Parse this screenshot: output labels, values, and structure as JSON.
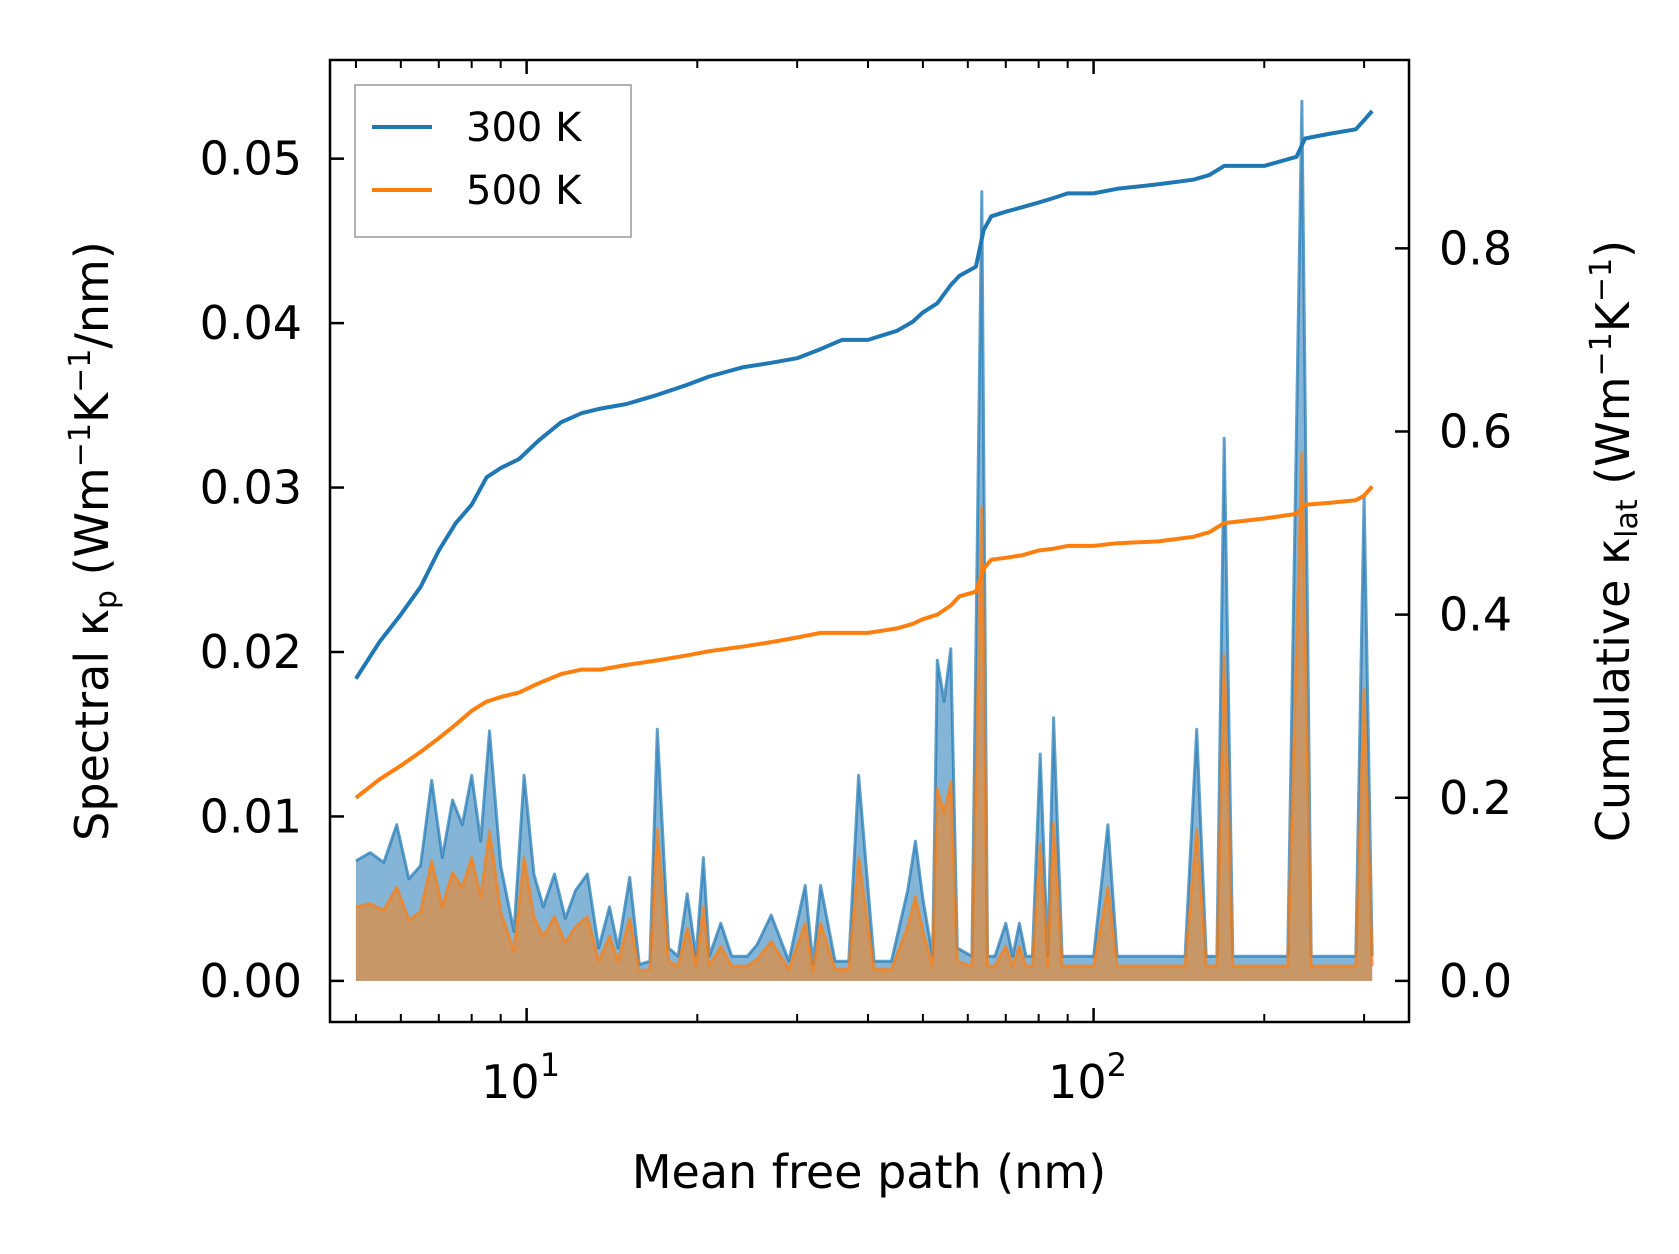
{
  "chart_data": {
    "type": "line",
    "x_scale": "log",
    "xlim": [
      4.5,
      360
    ],
    "ylim_left": [
      -0.0025,
      0.056
    ],
    "ylim_right": [
      -0.0449,
      1.0057
    ],
    "xlabel": "Mean free path (nm)",
    "ylabel_left": "Spectral κp (Wm−1K−1/nm)",
    "ylabel_right": "Cumulative κlat (Wm−1K−1)",
    "ylabel_left_parts": [
      "Spectral κ",
      "p",
      " (Wm",
      "−1",
      "K",
      "−1",
      "/nm)"
    ],
    "ylabel_right_parts": [
      "Cumulative κ",
      "lat",
      " (Wm",
      "−1",
      "K",
      "−1",
      ")"
    ],
    "x_ticks": [
      {
        "value": 10,
        "base": "10",
        "exp": "1"
      },
      {
        "value": 100,
        "base": "10",
        "exp": "2"
      }
    ],
    "y_ticks_left": [
      {
        "value": 0.0,
        "label": "0.00"
      },
      {
        "value": 0.01,
        "label": "0.01"
      },
      {
        "value": 0.02,
        "label": "0.02"
      },
      {
        "value": 0.03,
        "label": "0.03"
      },
      {
        "value": 0.04,
        "label": "0.04"
      },
      {
        "value": 0.05,
        "label": "0.05"
      }
    ],
    "y_ticks_right": [
      {
        "value": 0.0,
        "label": "0.0"
      },
      {
        "value": 0.2,
        "label": "0.2"
      },
      {
        "value": 0.4,
        "label": "0.4"
      },
      {
        "value": 0.6,
        "label": "0.6"
      },
      {
        "value": 0.8,
        "label": "0.8"
      }
    ],
    "legend": {
      "position": "upper-left"
    },
    "series": [
      {
        "name": "300 K",
        "color": "#1f77b4",
        "cumulative": [
          [
            5,
            0.33
          ],
          [
            5.5,
            0.37
          ],
          [
            6.0,
            0.4
          ],
          [
            6.5,
            0.43
          ],
          [
            7.0,
            0.47
          ],
          [
            7.5,
            0.5
          ],
          [
            8,
            0.52
          ],
          [
            8.5,
            0.55
          ],
          [
            9,
            0.56
          ],
          [
            9.7,
            0.57
          ],
          [
            10.5,
            0.59
          ],
          [
            11.5,
            0.61
          ],
          [
            12.5,
            0.62
          ],
          [
            13.5,
            0.625
          ],
          [
            15,
            0.63
          ],
          [
            17,
            0.64
          ],
          [
            19,
            0.65
          ],
          [
            21,
            0.66
          ],
          [
            24,
            0.67
          ],
          [
            27,
            0.675
          ],
          [
            30,
            0.68
          ],
          [
            33,
            0.69
          ],
          [
            36,
            0.7
          ],
          [
            40,
            0.7
          ],
          [
            45,
            0.71
          ],
          [
            48,
            0.72
          ],
          [
            50,
            0.73
          ],
          [
            53,
            0.74
          ],
          [
            56,
            0.76
          ],
          [
            58,
            0.77
          ],
          [
            62,
            0.78
          ],
          [
            64,
            0.82
          ],
          [
            66,
            0.835
          ],
          [
            70,
            0.84
          ],
          [
            75,
            0.845
          ],
          [
            80,
            0.85
          ],
          [
            85,
            0.855
          ],
          [
            90,
            0.86
          ],
          [
            100,
            0.86
          ],
          [
            110,
            0.865
          ],
          [
            130,
            0.87
          ],
          [
            150,
            0.875
          ],
          [
            160,
            0.88
          ],
          [
            170,
            0.89
          ],
          [
            200,
            0.89
          ],
          [
            228,
            0.9
          ],
          [
            236,
            0.92
          ],
          [
            260,
            0.925
          ],
          [
            290,
            0.93
          ],
          [
            300,
            0.94
          ],
          [
            310,
            0.95
          ]
        ],
        "spectral": [
          [
            5,
            0.0073
          ],
          [
            5.3,
            0.0078
          ],
          [
            5.6,
            0.0072
          ],
          [
            5.9,
            0.0095
          ],
          [
            6.2,
            0.0062
          ],
          [
            6.5,
            0.007
          ],
          [
            6.8,
            0.0122
          ],
          [
            7.1,
            0.0075
          ],
          [
            7.4,
            0.011
          ],
          [
            7.7,
            0.0095
          ],
          [
            8,
            0.0125
          ],
          [
            8.3,
            0.0085
          ],
          [
            8.6,
            0.0152
          ],
          [
            9.0,
            0.007
          ],
          [
            9.5,
            0.003
          ],
          [
            9.9,
            0.0125
          ],
          [
            10.3,
            0.0065
          ],
          [
            10.7,
            0.0045
          ],
          [
            11.2,
            0.0065
          ],
          [
            11.7,
            0.0038
          ],
          [
            12.2,
            0.0055
          ],
          [
            12.8,
            0.0065
          ],
          [
            13.4,
            0.002
          ],
          [
            14,
            0.0045
          ],
          [
            14.5,
            0.002
          ],
          [
            15.2,
            0.0063
          ],
          [
            15.8,
            0.001
          ],
          [
            16.5,
            0.0012
          ],
          [
            17,
            0.0153
          ],
          [
            17.8,
            0.002
          ],
          [
            18.5,
            0.0015
          ],
          [
            19.2,
            0.0053
          ],
          [
            19.9,
            0.0015
          ],
          [
            20.5,
            0.0075
          ],
          [
            21,
            0.0015
          ],
          [
            22,
            0.0035
          ],
          [
            23,
            0.0015
          ],
          [
            24.5,
            0.0015
          ],
          [
            25.5,
            0.0022
          ],
          [
            27,
            0.004
          ],
          [
            29,
            0.0012
          ],
          [
            31,
            0.0058
          ],
          [
            32,
            0.001
          ],
          [
            33,
            0.0058
          ],
          [
            35,
            0.0012
          ],
          [
            37,
            0.0012
          ],
          [
            38.5,
            0.0125
          ],
          [
            41,
            0.0012
          ],
          [
            44,
            0.0012
          ],
          [
            47,
            0.0055
          ],
          [
            48.5,
            0.0085
          ],
          [
            50,
            0.005
          ],
          [
            52,
            0.0015
          ],
          [
            53,
            0.0195
          ],
          [
            54.5,
            0.017
          ],
          [
            56,
            0.0202
          ],
          [
            57.5,
            0.002
          ],
          [
            61,
            0.0015
          ],
          [
            63.5,
            0.048
          ],
          [
            65,
            0.0015
          ],
          [
            67,
            0.0015
          ],
          [
            70,
            0.0035
          ],
          [
            72,
            0.0015
          ],
          [
            74,
            0.0035
          ],
          [
            76,
            0.0015
          ],
          [
            78,
            0.0015
          ],
          [
            80.5,
            0.0138
          ],
          [
            83,
            0.0015
          ],
          [
            85,
            0.016
          ],
          [
            88,
            0.0015
          ],
          [
            100,
            0.0015
          ],
          [
            106,
            0.0095
          ],
          [
            110,
            0.0015
          ],
          [
            145,
            0.0015
          ],
          [
            152,
            0.0153
          ],
          [
            158,
            0.0015
          ],
          [
            165,
            0.0015
          ],
          [
            170,
            0.033
          ],
          [
            176,
            0.0015
          ],
          [
            220,
            0.0015
          ],
          [
            233,
            0.0535
          ],
          [
            242,
            0.0015
          ],
          [
            290,
            0.0015
          ],
          [
            300,
            0.0295
          ],
          [
            310,
            0.0015
          ]
        ]
      },
      {
        "name": "500 K",
        "color": "#ff7f0e",
        "cumulative": [
          [
            5,
            0.2
          ],
          [
            5.5,
            0.22
          ],
          [
            6.0,
            0.235
          ],
          [
            6.5,
            0.25
          ],
          [
            7.0,
            0.265
          ],
          [
            7.5,
            0.28
          ],
          [
            8,
            0.295
          ],
          [
            8.5,
            0.305
          ],
          [
            9,
            0.31
          ],
          [
            9.7,
            0.315
          ],
          [
            10.5,
            0.325
          ],
          [
            11.5,
            0.335
          ],
          [
            12.5,
            0.34
          ],
          [
            13.5,
            0.34
          ],
          [
            15,
            0.345
          ],
          [
            17,
            0.35
          ],
          [
            19,
            0.355
          ],
          [
            21,
            0.36
          ],
          [
            24,
            0.365
          ],
          [
            27,
            0.37
          ],
          [
            30,
            0.375
          ],
          [
            33,
            0.38
          ],
          [
            36,
            0.38
          ],
          [
            40,
            0.38
          ],
          [
            45,
            0.385
          ],
          [
            48,
            0.39
          ],
          [
            50,
            0.395
          ],
          [
            53,
            0.4
          ],
          [
            56,
            0.41
          ],
          [
            58,
            0.42
          ],
          [
            62,
            0.425
          ],
          [
            64,
            0.45
          ],
          [
            66,
            0.46
          ],
          [
            70,
            0.462
          ],
          [
            75,
            0.465
          ],
          [
            80,
            0.47
          ],
          [
            85,
            0.472
          ],
          [
            90,
            0.475
          ],
          [
            100,
            0.475
          ],
          [
            110,
            0.478
          ],
          [
            130,
            0.48
          ],
          [
            150,
            0.485
          ],
          [
            160,
            0.49
          ],
          [
            170,
            0.5
          ],
          [
            200,
            0.505
          ],
          [
            228,
            0.51
          ],
          [
            236,
            0.52
          ],
          [
            260,
            0.522
          ],
          [
            290,
            0.525
          ],
          [
            300,
            0.53
          ],
          [
            310,
            0.54
          ]
        ],
        "spectral": [
          [
            5,
            0.0045
          ],
          [
            5.3,
            0.0047
          ],
          [
            5.6,
            0.0043
          ],
          [
            5.9,
            0.0057
          ],
          [
            6.2,
            0.0037
          ],
          [
            6.5,
            0.0042
          ],
          [
            6.8,
            0.0073
          ],
          [
            7.1,
            0.0045
          ],
          [
            7.4,
            0.0066
          ],
          [
            7.7,
            0.0057
          ],
          [
            8,
            0.0075
          ],
          [
            8.3,
            0.0051
          ],
          [
            8.6,
            0.0091
          ],
          [
            9.0,
            0.0042
          ],
          [
            9.5,
            0.0018
          ],
          [
            9.9,
            0.0075
          ],
          [
            10.3,
            0.0039
          ],
          [
            10.7,
            0.0027
          ],
          [
            11.2,
            0.0039
          ],
          [
            11.7,
            0.0023
          ],
          [
            12.2,
            0.0033
          ],
          [
            12.8,
            0.0039
          ],
          [
            13.4,
            0.0012
          ],
          [
            14,
            0.0027
          ],
          [
            14.5,
            0.0012
          ],
          [
            15.2,
            0.0038
          ],
          [
            15.8,
            0.0006
          ],
          [
            16.5,
            0.0007
          ],
          [
            17,
            0.0092
          ],
          [
            17.8,
            0.0012
          ],
          [
            18.5,
            0.0009
          ],
          [
            19.2,
            0.0032
          ],
          [
            19.9,
            0.0009
          ],
          [
            20.5,
            0.0045
          ],
          [
            21,
            0.0009
          ],
          [
            22,
            0.0021
          ],
          [
            23,
            0.0009
          ],
          [
            24.5,
            0.0009
          ],
          [
            25.5,
            0.0013
          ],
          [
            27,
            0.0024
          ],
          [
            29,
            0.0007
          ],
          [
            31,
            0.0035
          ],
          [
            32,
            0.0006
          ],
          [
            33,
            0.0035
          ],
          [
            35,
            0.0007
          ],
          [
            37,
            0.0007
          ],
          [
            38.5,
            0.0075
          ],
          [
            41,
            0.0007
          ],
          [
            44,
            0.0007
          ],
          [
            47,
            0.0033
          ],
          [
            48.5,
            0.0051
          ],
          [
            50,
            0.003
          ],
          [
            52,
            0.0009
          ],
          [
            53,
            0.0117
          ],
          [
            54.5,
            0.0102
          ],
          [
            56,
            0.0121
          ],
          [
            57.5,
            0.0012
          ],
          [
            61,
            0.0009
          ],
          [
            63.5,
            0.0288
          ],
          [
            65,
            0.0009
          ],
          [
            67,
            0.0009
          ],
          [
            70,
            0.0021
          ],
          [
            72,
            0.0009
          ],
          [
            74,
            0.0021
          ],
          [
            76,
            0.0009
          ],
          [
            78,
            0.0009
          ],
          [
            80.5,
            0.0083
          ],
          [
            83,
            0.0009
          ],
          [
            85,
            0.0096
          ],
          [
            88,
            0.0009
          ],
          [
            100,
            0.0009
          ],
          [
            106,
            0.0057
          ],
          [
            110,
            0.0009
          ],
          [
            145,
            0.0009
          ],
          [
            152,
            0.0092
          ],
          [
            158,
            0.0009
          ],
          [
            165,
            0.0009
          ],
          [
            170,
            0.0198
          ],
          [
            176,
            0.0009
          ],
          [
            220,
            0.0009
          ],
          [
            233,
            0.0321
          ],
          [
            242,
            0.0009
          ],
          [
            290,
            0.0009
          ],
          [
            300,
            0.0177
          ],
          [
            310,
            0.0009
          ]
        ]
      }
    ]
  }
}
